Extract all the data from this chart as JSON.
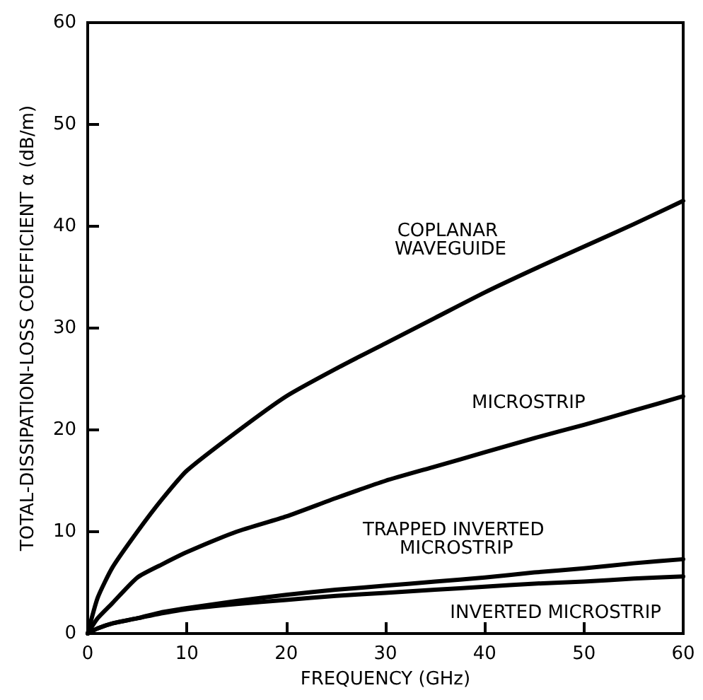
{
  "chart_data": {
    "type": "line",
    "xlabel": "FREQUENCY (GHz)",
    "ylabel": "TOTAL-DISSIPATION-LOSS COEFFICIENT α (dB/m)",
    "x": [
      0,
      1,
      2.5,
      5,
      7.5,
      10,
      15,
      20,
      25,
      30,
      35,
      40,
      45,
      50,
      55,
      60
    ],
    "series": [
      {
        "name": "COPLANAR WAVEGUIDE",
        "color": "#000000",
        "values": [
          0,
          3.5,
          6.5,
          10,
          13.2,
          16,
          19.8,
          23.3,
          26,
          28.5,
          31,
          33.5,
          35.8,
          38,
          40.2,
          42.5
        ]
      },
      {
        "name": "MICROSTRIP",
        "color": "#000000",
        "values": [
          0,
          1.5,
          3,
          5.5,
          6.8,
          8,
          10,
          11.5,
          13.3,
          15,
          16.4,
          17.8,
          19.2,
          20.5,
          21.9,
          23.3
        ]
      },
      {
        "name": "TRAPPED INVERTED MICROSTRIP",
        "color": "#000000",
        "values": [
          0,
          0.5,
          1,
          1.5,
          2.1,
          2.5,
          3.2,
          3.8,
          4.3,
          4.7,
          5.1,
          5.5,
          6,
          6.4,
          6.9,
          7.3
        ]
      },
      {
        "name": "INVERTED MICROSTRIP",
        "color": "#000000",
        "values": [
          0,
          0.5,
          1,
          1.5,
          2,
          2.4,
          2.9,
          3.3,
          3.7,
          4,
          4.3,
          4.6,
          4.9,
          5.1,
          5.4,
          5.6
        ]
      }
    ],
    "xlim": [
      0,
      60
    ],
    "xticks": [
      0,
      10,
      20,
      30,
      40,
      50,
      60
    ],
    "ylim": [
      0,
      60
    ],
    "yticks": [
      0,
      10,
      20,
      30,
      40,
      50,
      60
    ],
    "grid": false,
    "legend": false,
    "marker": "none",
    "line_style": "solid"
  }
}
